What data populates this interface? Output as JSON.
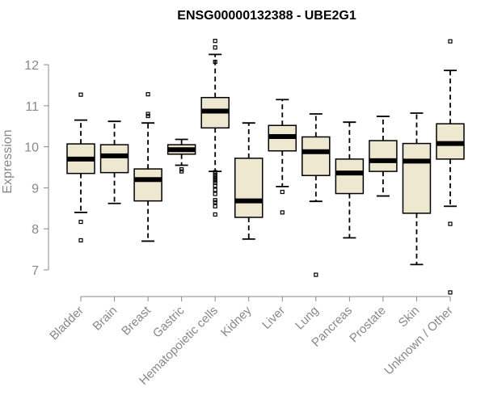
{
  "chart_data": {
    "type": "boxplot",
    "title": "ENSG00000132388 - UBE2G1",
    "xlabel": "",
    "ylabel": "Expression",
    "ylim": [
      6.35,
      12.75
    ],
    "yticks": [
      7,
      8,
      9,
      10,
      11,
      12
    ],
    "box_color": "#efe8d0",
    "categories": [
      "Bladder",
      "Brain",
      "Breast",
      "Gastric",
      "Hematopoietic cells",
      "Kidney",
      "Liver",
      "Lung",
      "Pancreas",
      "Prostate",
      "Skin",
      "Unknown / Other"
    ],
    "boxes": [
      {
        "name": "Bladder",
        "whisker_low": 8.4,
        "q1": 9.35,
        "median": 9.7,
        "q3": 10.07,
        "whisker_high": 10.65,
        "outliers": [
          11.27,
          8.17,
          7.72
        ]
      },
      {
        "name": "Brain",
        "whisker_low": 8.62,
        "q1": 9.37,
        "median": 9.78,
        "q3": 10.05,
        "whisker_high": 10.62,
        "outliers": []
      },
      {
        "name": "Breast",
        "whisker_low": 7.7,
        "q1": 8.68,
        "median": 9.2,
        "q3": 9.46,
        "whisker_high": 10.58,
        "outliers": [
          11.28,
          10.8,
          10.75
        ]
      },
      {
        "name": "Gastric",
        "whisker_low": 9.55,
        "q1": 9.82,
        "median": 9.93,
        "q3": 10.05,
        "whisker_high": 10.18,
        "outliers": [
          9.45,
          9.4
        ]
      },
      {
        "name": "Hematopoietic cells",
        "whisker_low": 9.4,
        "q1": 10.46,
        "median": 10.87,
        "q3": 11.2,
        "whisker_high": 12.25,
        "outliers": [
          12.58,
          12.42,
          12.07,
          9.38,
          9.32,
          9.27,
          9.22,
          9.17,
          9.12,
          9.05,
          8.95,
          8.85,
          8.7,
          8.65,
          8.55,
          8.35
        ]
      },
      {
        "name": "Kidney",
        "whisker_low": 7.75,
        "q1": 8.28,
        "median": 8.68,
        "q3": 9.72,
        "whisker_high": 10.58,
        "outliers": []
      },
      {
        "name": "Liver",
        "whisker_low": 9.03,
        "q1": 9.9,
        "median": 10.25,
        "q3": 10.52,
        "whisker_high": 11.15,
        "outliers": [
          8.9,
          8.4
        ]
      },
      {
        "name": "Lung",
        "whisker_low": 8.67,
        "q1": 9.3,
        "median": 9.88,
        "q3": 10.24,
        "whisker_high": 10.8,
        "outliers": [
          6.88
        ]
      },
      {
        "name": "Pancreas",
        "whisker_low": 7.78,
        "q1": 8.86,
        "median": 9.36,
        "q3": 9.7,
        "whisker_high": 10.6,
        "outliers": []
      },
      {
        "name": "Prostate",
        "whisker_low": 8.8,
        "q1": 9.4,
        "median": 9.66,
        "q3": 10.15,
        "whisker_high": 10.74,
        "outliers": []
      },
      {
        "name": "Skin",
        "whisker_low": 7.13,
        "q1": 8.38,
        "median": 9.65,
        "q3": 10.08,
        "whisker_high": 10.82,
        "outliers": []
      },
      {
        "name": "Unknown / Other",
        "whisker_low": 8.55,
        "q1": 9.7,
        "median": 10.08,
        "q3": 10.56,
        "whisker_high": 11.86,
        "outliers": [
          12.57,
          8.12,
          6.45
        ]
      }
    ]
  }
}
